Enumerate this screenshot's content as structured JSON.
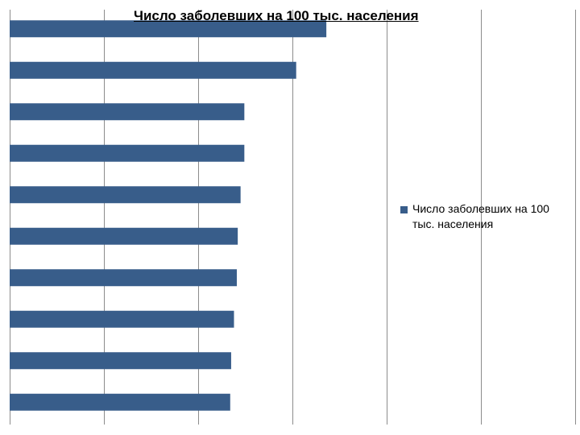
{
  "chart_data": {
    "type": "bar",
    "orientation": "horizontal",
    "title": "Число заболевших на 100 тыс. населения",
    "xlabel": "",
    "ylabel": "",
    "categories": [
      "",
      "",
      "",
      "",
      "",
      "",
      "",
      "",
      "",
      ""
    ],
    "series": [
      {
        "name": "Число заболевших на 100 тыс. населения",
        "values": [
          3.36,
          3.04,
          2.49,
          2.49,
          2.45,
          2.42,
          2.41,
          2.38,
          2.35,
          2.34
        ],
        "color": "#385d8a"
      }
    ],
    "xlim": [
      0,
      6
    ],
    "grid": "vertical",
    "legend": "right"
  }
}
